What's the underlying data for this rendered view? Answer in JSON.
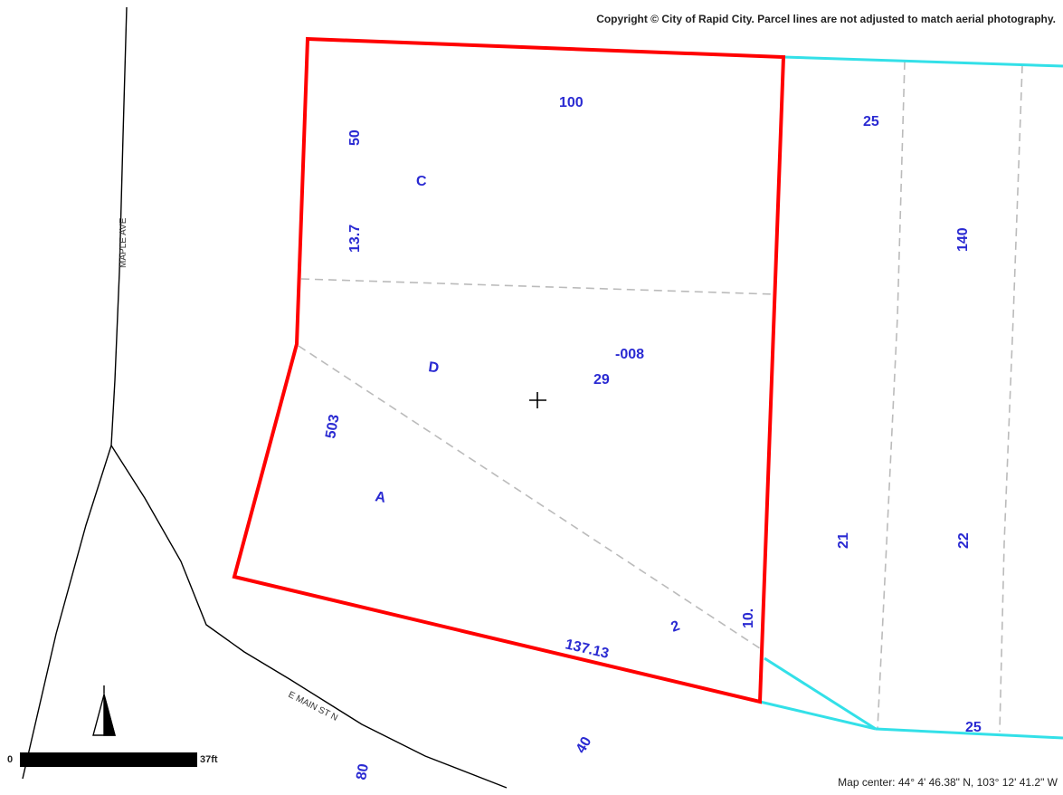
{
  "map": {
    "copyright": "Copyright © City of Rapid City.  Parcel lines are not adjusted to match aerial photography.",
    "center_readout": "Map center: 44° 4' 46.38\" N, 103° 12' 41.2\" W",
    "scale": {
      "zero_label": "0",
      "max_label": "37ft"
    },
    "streets": {
      "maple": "MAPLE AVE",
      "main": "E MAIN ST N"
    },
    "north_arrow_icon": "north-arrow-icon",
    "center_marker_icon": "crosshair-icon",
    "colors": {
      "selected_parcel": "#ff0000",
      "adjacent_parcel": "#33e0e8",
      "lot_line": "#bbbbbb",
      "street_line": "#000000",
      "label": "#2a2ad2"
    },
    "labels": {
      "l100": "100",
      "l50": "50",
      "lC": "C",
      "l137": "13.7",
      "l25a": "25",
      "l140": "140",
      "lD": "D",
      "l008": "-008",
      "l29": "29",
      "l503": "503",
      "lA": "A",
      "l21": "21",
      "l22": "22",
      "l10": "10.",
      "l2": "2",
      "l13713": "137.13",
      "l25b": "25",
      "l80": "80",
      "l40": "40"
    }
  }
}
